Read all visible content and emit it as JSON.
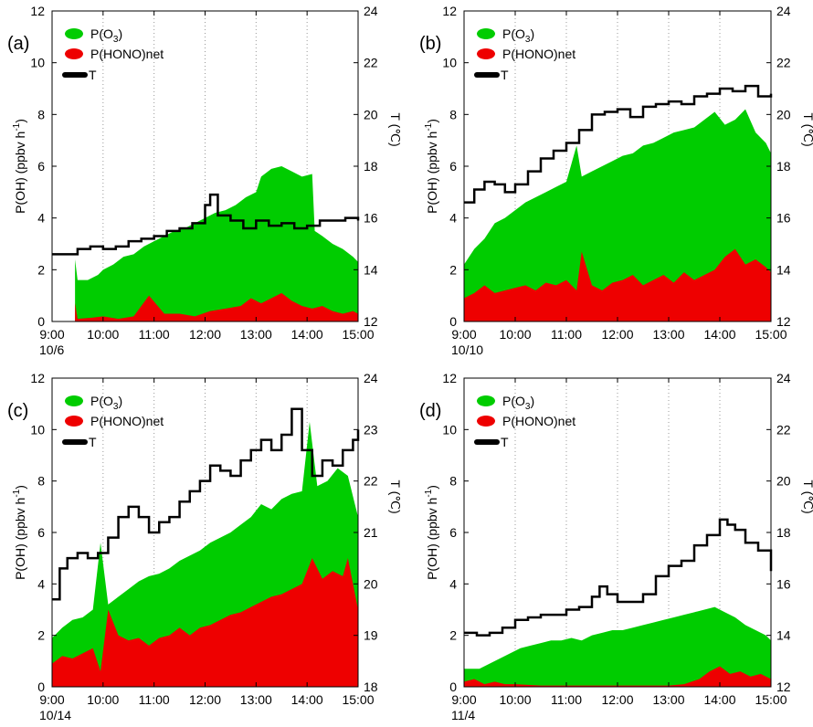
{
  "colors": {
    "o3": "#00cc00",
    "hono": "#ee0000",
    "temp": "#000000",
    "grid": "#999999"
  },
  "chart_data": [
    {
      "type": "area",
      "panel_label": "(a)",
      "date_label": "10/6",
      "ylabel": "P(OH) (ppbv h-1)",
      "ylabel_main": "P(OH) (ppbv h",
      "ylabel_sup": "-1",
      "ylabel_tail": ")",
      "y2label": "T (℃)",
      "x_ticks": [
        "9:00",
        "10:00",
        "11:00",
        "12:00",
        "13:00",
        "14:00",
        "15:00"
      ],
      "y_ticks": [
        "0",
        "2",
        "4",
        "6",
        "8",
        "10",
        "12"
      ],
      "y2_ticks": [
        "12",
        "14",
        "16",
        "18",
        "20",
        "22",
        "24"
      ],
      "x_range": [
        9,
        15
      ],
      "ylim": [
        0,
        12
      ],
      "y2lim": [
        12,
        24
      ],
      "legend": {
        "o3": "P(O",
        "o3_sub": "3",
        "o3_tail": ")",
        "hono": "P(HONO)net",
        "t": "T"
      },
      "series": [
        {
          "key": "o3",
          "x": [
            9.45,
            9.5,
            9.7,
            9.9,
            10.0,
            10.2,
            10.4,
            10.6,
            10.8,
            11.0,
            11.2,
            11.4,
            11.6,
            11.8,
            12.0,
            12.2,
            12.4,
            12.6,
            12.8,
            13.0,
            13.1,
            13.3,
            13.5,
            13.7,
            13.9,
            14.1,
            14.15,
            14.3,
            14.5,
            14.7,
            14.9,
            15.0
          ],
          "y": [
            2.4,
            1.6,
            1.6,
            1.8,
            2.0,
            2.2,
            2.5,
            2.6,
            2.9,
            3.1,
            3.3,
            3.5,
            3.6,
            3.8,
            4.0,
            4.2,
            4.3,
            4.5,
            4.8,
            5.0,
            5.6,
            5.9,
            6.0,
            5.8,
            5.6,
            5.7,
            3.5,
            3.3,
            3.0,
            2.8,
            2.5,
            2.3
          ]
        },
        {
          "key": "hono",
          "x": [
            9.45,
            9.5,
            9.8,
            10.0,
            10.3,
            10.6,
            10.9,
            11.2,
            11.5,
            11.8,
            12.1,
            12.4,
            12.7,
            12.9,
            13.1,
            13.3,
            13.5,
            13.7,
            13.9,
            14.1,
            14.3,
            14.5,
            14.7,
            14.9,
            15.0
          ],
          "y": [
            0.7,
            0.1,
            0.15,
            0.2,
            0.1,
            0.2,
            1.0,
            0.3,
            0.3,
            0.2,
            0.4,
            0.5,
            0.6,
            0.9,
            0.7,
            0.9,
            1.1,
            0.8,
            0.6,
            0.5,
            0.6,
            0.4,
            0.3,
            0.4,
            0.3
          ]
        },
        {
          "key": "t",
          "x": [
            9.0,
            9.25,
            9.5,
            9.75,
            10.0,
            10.25,
            10.5,
            10.75,
            11.0,
            11.25,
            11.5,
            11.75,
            12.0,
            12.1,
            12.25,
            12.5,
            12.75,
            13.0,
            13.25,
            13.5,
            13.75,
            14.0,
            14.25,
            14.5,
            14.75,
            15.0
          ],
          "y": [
            14.6,
            14.6,
            14.8,
            14.9,
            14.8,
            14.9,
            15.1,
            15.2,
            15.3,
            15.5,
            15.6,
            15.8,
            16.5,
            16.9,
            16.1,
            15.9,
            15.6,
            15.9,
            15.7,
            15.8,
            15.6,
            15.7,
            15.9,
            15.9,
            16.0,
            15.9
          ]
        }
      ]
    },
    {
      "type": "area",
      "panel_label": "(b)",
      "date_label": "10/10",
      "ylabel": "P(OH) (ppbv h-1)",
      "ylabel_main": "P(OH) (ppbv h",
      "ylabel_sup": "-1",
      "ylabel_tail": ")",
      "y2label": "T (℃)",
      "x_ticks": [
        "9:00",
        "10:00",
        "11:00",
        "12:00",
        "13:00",
        "14:00",
        "15:00"
      ],
      "y_ticks": [
        "0",
        "2",
        "4",
        "6",
        "8",
        "10",
        "12"
      ],
      "y2_ticks": [
        "12",
        "14",
        "16",
        "18",
        "20",
        "22",
        "24"
      ],
      "x_range": [
        9,
        15
      ],
      "ylim": [
        0,
        12
      ],
      "y2lim": [
        12,
        24
      ],
      "legend": {
        "o3": "P(O",
        "o3_sub": "3",
        "o3_tail": ")",
        "hono": "P(HONO)net",
        "t": "T"
      },
      "series": [
        {
          "key": "o3",
          "x": [
            9.0,
            9.2,
            9.4,
            9.6,
            9.8,
            10.0,
            10.2,
            10.4,
            10.6,
            10.8,
            11.0,
            11.2,
            11.3,
            11.5,
            11.7,
            11.9,
            12.1,
            12.3,
            12.5,
            12.7,
            12.9,
            13.1,
            13.3,
            13.5,
            13.7,
            13.9,
            14.1,
            14.3,
            14.5,
            14.7,
            14.9,
            15.0
          ],
          "y": [
            2.2,
            2.8,
            3.2,
            3.8,
            4.0,
            4.3,
            4.6,
            4.8,
            5.0,
            5.2,
            5.4,
            6.8,
            5.6,
            5.8,
            6.0,
            6.2,
            6.4,
            6.5,
            6.8,
            6.9,
            7.1,
            7.3,
            7.4,
            7.5,
            7.8,
            8.1,
            7.6,
            7.8,
            8.2,
            7.3,
            6.9,
            6.5
          ]
        },
        {
          "key": "hono",
          "x": [
            9.0,
            9.2,
            9.4,
            9.6,
            9.8,
            10.0,
            10.2,
            10.4,
            10.6,
            10.8,
            11.0,
            11.2,
            11.3,
            11.5,
            11.7,
            11.9,
            12.1,
            12.3,
            12.5,
            12.7,
            12.9,
            13.1,
            13.3,
            13.5,
            13.7,
            13.9,
            14.1,
            14.3,
            14.5,
            14.7,
            14.9,
            15.0
          ],
          "y": [
            0.9,
            1.1,
            1.4,
            1.1,
            1.2,
            1.3,
            1.4,
            1.2,
            1.5,
            1.4,
            1.6,
            1.2,
            2.7,
            1.4,
            1.2,
            1.5,
            1.6,
            1.8,
            1.4,
            1.6,
            1.8,
            1.5,
            1.9,
            1.6,
            1.8,
            2.0,
            2.5,
            2.8,
            2.2,
            2.4,
            2.1,
            1.9
          ]
        },
        {
          "key": "t",
          "x": [
            9.0,
            9.2,
            9.4,
            9.6,
            9.8,
            10.0,
            10.25,
            10.5,
            10.75,
            11.0,
            11.25,
            11.5,
            11.75,
            12.0,
            12.25,
            12.5,
            12.75,
            13.0,
            13.25,
            13.5,
            13.75,
            14.0,
            14.25,
            14.5,
            14.75,
            15.0
          ],
          "y": [
            16.6,
            17.1,
            17.4,
            17.3,
            17.0,
            17.3,
            17.8,
            18.3,
            18.6,
            18.9,
            19.4,
            20.0,
            20.1,
            20.2,
            19.9,
            20.3,
            20.4,
            20.5,
            20.4,
            20.7,
            20.8,
            21.0,
            20.9,
            21.1,
            20.7,
            20.8
          ]
        }
      ]
    },
    {
      "type": "area",
      "panel_label": "(c)",
      "date_label": "10/14",
      "ylabel": "P(OH) (ppbv h-1)",
      "ylabel_main": "P(OH) (ppbv h",
      "ylabel_sup": "-1",
      "ylabel_tail": ")",
      "y2label": "T (℃)",
      "x_ticks": [
        "9:00",
        "10:00",
        "11:00",
        "12:00",
        "13:00",
        "14:00",
        "15:00"
      ],
      "y_ticks": [
        "0",
        "2",
        "4",
        "6",
        "8",
        "10",
        "12"
      ],
      "y2_ticks": [
        "18",
        "19",
        "20",
        "21",
        "22",
        "23",
        "24"
      ],
      "x_range": [
        9,
        15
      ],
      "ylim": [
        0,
        12
      ],
      "y2lim": [
        18,
        24
      ],
      "legend": {
        "o3": "P(O",
        "o3_sub": "3",
        "o3_tail": ")",
        "hono": "P(HONO)net",
        "t": "T"
      },
      "series": [
        {
          "key": "o3",
          "x": [
            9.0,
            9.2,
            9.4,
            9.6,
            9.8,
            9.95,
            10.1,
            10.3,
            10.5,
            10.7,
            10.9,
            11.1,
            11.3,
            11.5,
            11.7,
            11.9,
            12.1,
            12.3,
            12.5,
            12.7,
            12.9,
            13.1,
            13.3,
            13.5,
            13.7,
            13.9,
            14.05,
            14.2,
            14.4,
            14.6,
            14.8,
            15.0
          ],
          "y": [
            1.9,
            2.3,
            2.6,
            2.7,
            3.0,
            5.6,
            3.2,
            3.5,
            3.8,
            4.1,
            4.3,
            4.4,
            4.6,
            4.9,
            5.1,
            5.3,
            5.6,
            5.8,
            6.0,
            6.3,
            6.6,
            7.1,
            6.9,
            7.3,
            7.5,
            7.6,
            10.3,
            7.8,
            8.0,
            8.5,
            8.2,
            6.6
          ]
        },
        {
          "key": "hono",
          "x": [
            9.0,
            9.2,
            9.4,
            9.6,
            9.8,
            9.95,
            10.1,
            10.3,
            10.5,
            10.7,
            10.9,
            11.1,
            11.3,
            11.5,
            11.7,
            11.9,
            12.1,
            12.3,
            12.5,
            12.7,
            12.9,
            13.1,
            13.3,
            13.5,
            13.7,
            13.9,
            14.1,
            14.3,
            14.5,
            14.7,
            14.8,
            15.0
          ],
          "y": [
            0.9,
            1.2,
            1.1,
            1.3,
            1.5,
            0.6,
            3.0,
            2.0,
            1.8,
            1.9,
            1.6,
            1.9,
            2.0,
            2.3,
            2.0,
            2.3,
            2.4,
            2.6,
            2.8,
            2.9,
            3.1,
            3.3,
            3.5,
            3.6,
            3.8,
            4.0,
            5.0,
            4.2,
            4.5,
            4.3,
            5.0,
            3.0
          ]
        },
        {
          "key": "t",
          "x": [
            9.0,
            9.15,
            9.3,
            9.5,
            9.7,
            9.9,
            10.1,
            10.3,
            10.5,
            10.7,
            10.9,
            11.1,
            11.3,
            11.5,
            11.7,
            11.9,
            12.1,
            12.3,
            12.5,
            12.7,
            12.9,
            13.1,
            13.3,
            13.5,
            13.7,
            13.9,
            14.1,
            14.3,
            14.5,
            14.7,
            14.9,
            15.0
          ],
          "y": [
            19.7,
            20.3,
            20.5,
            20.6,
            20.5,
            20.6,
            20.9,
            21.3,
            21.5,
            21.3,
            21.0,
            21.2,
            21.3,
            21.6,
            21.8,
            22.0,
            22.3,
            22.2,
            22.1,
            22.4,
            22.6,
            22.8,
            22.6,
            22.9,
            23.4,
            22.6,
            22.1,
            22.4,
            22.3,
            22.6,
            22.8,
            23.0
          ]
        }
      ]
    },
    {
      "type": "area",
      "panel_label": "(d)",
      "date_label": "11/4",
      "ylabel": "P(OH) (ppbv h-1)",
      "ylabel_main": "P(OH) (ppbv h",
      "ylabel_sup": "-1",
      "ylabel_tail": ")",
      "y2label": "T (℃)",
      "x_ticks": [
        "9:00",
        "10:00",
        "11:00",
        "12:00",
        "13:00",
        "14:00",
        "15:00"
      ],
      "y_ticks": [
        "0",
        "2",
        "4",
        "6",
        "8",
        "10",
        "12"
      ],
      "y2_ticks": [
        "12",
        "14",
        "16",
        "18",
        "20",
        "22",
        "24"
      ],
      "x_range": [
        9,
        15
      ],
      "ylim": [
        0,
        12
      ],
      "y2lim": [
        12,
        24
      ],
      "legend": {
        "o3": "P(O",
        "o3_sub": "3",
        "o3_tail": ")",
        "hono": "P(HONO)net",
        "t": "T"
      },
      "series": [
        {
          "key": "o3",
          "x": [
            9.0,
            9.3,
            9.5,
            9.7,
            9.9,
            10.1,
            10.3,
            10.5,
            10.7,
            10.9,
            11.1,
            11.3,
            11.5,
            11.7,
            11.9,
            12.1,
            12.3,
            12.5,
            12.7,
            12.9,
            13.1,
            13.3,
            13.5,
            13.7,
            13.9,
            14.1,
            14.3,
            14.5,
            14.7,
            14.9,
            15.0
          ],
          "y": [
            0.7,
            0.7,
            0.9,
            1.1,
            1.3,
            1.5,
            1.6,
            1.7,
            1.8,
            1.8,
            1.9,
            1.8,
            2.0,
            2.1,
            2.2,
            2.2,
            2.3,
            2.4,
            2.5,
            2.6,
            2.7,
            2.8,
            2.9,
            3.0,
            3.1,
            2.9,
            2.7,
            2.4,
            2.2,
            2.0,
            1.8
          ]
        },
        {
          "key": "hono",
          "x": [
            9.0,
            9.2,
            9.4,
            9.6,
            9.8,
            10.0,
            10.5,
            11.0,
            11.5,
            12.0,
            12.5,
            13.0,
            13.3,
            13.6,
            13.8,
            14.0,
            14.2,
            14.4,
            14.6,
            14.8,
            15.0
          ],
          "y": [
            0.2,
            0.3,
            0.1,
            0.2,
            0.1,
            0.1,
            0.05,
            0.05,
            0.05,
            0.05,
            0.05,
            0.05,
            0.1,
            0.3,
            0.6,
            0.8,
            0.5,
            0.6,
            0.4,
            0.5,
            0.3
          ]
        },
        {
          "key": "t",
          "x": [
            9.0,
            9.25,
            9.5,
            9.75,
            10.0,
            10.25,
            10.5,
            10.75,
            11.0,
            11.25,
            11.5,
            11.65,
            11.8,
            12.0,
            12.25,
            12.5,
            12.75,
            13.0,
            13.25,
            13.5,
            13.75,
            14.0,
            14.15,
            14.3,
            14.5,
            14.75,
            15.0
          ],
          "y": [
            14.1,
            14.0,
            14.1,
            14.3,
            14.6,
            14.7,
            14.8,
            14.8,
            15.0,
            15.1,
            15.5,
            15.9,
            15.6,
            15.3,
            15.3,
            15.6,
            16.3,
            16.7,
            16.9,
            17.5,
            17.9,
            18.5,
            18.3,
            18.1,
            17.6,
            17.3,
            16.5
          ]
        }
      ]
    }
  ]
}
